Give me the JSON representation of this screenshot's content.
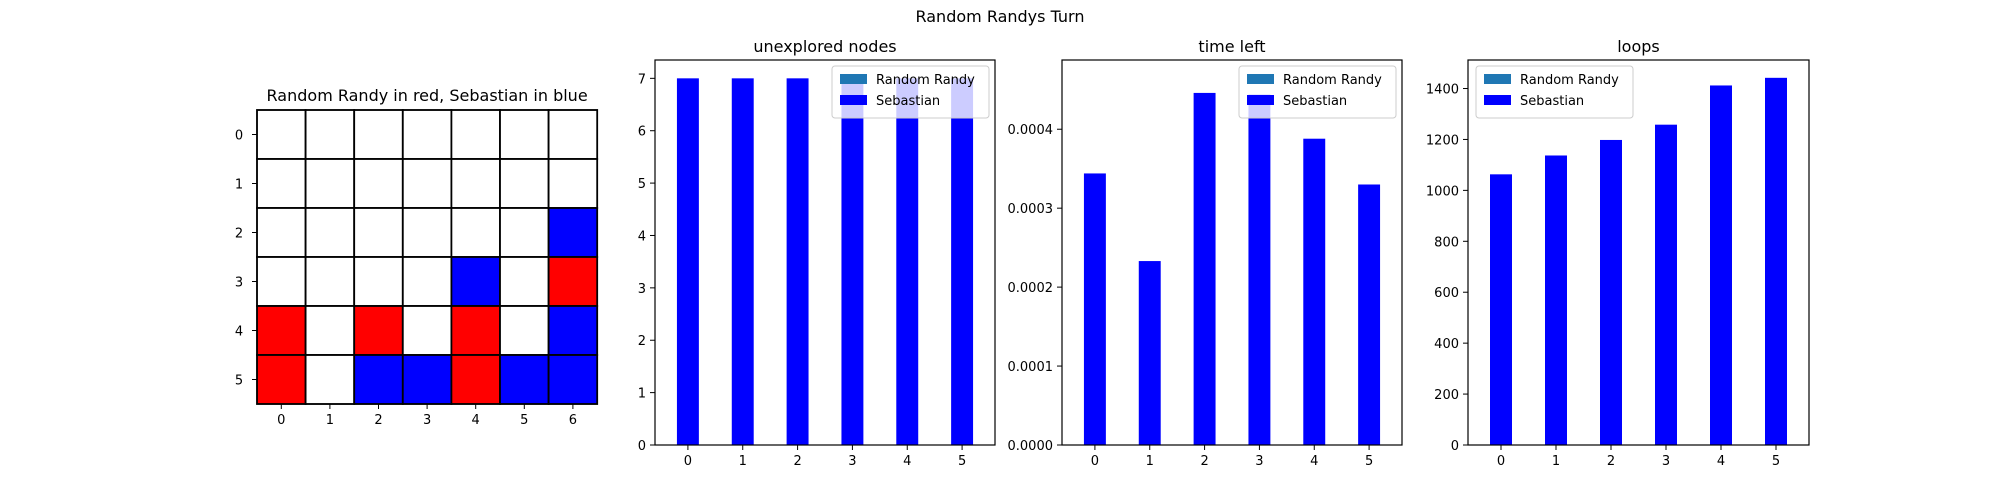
{
  "figure": {
    "suptitle": "Random Randys Turn"
  },
  "chart_data": [
    {
      "type": "heatmap",
      "title": "Random Randy in red, Sebastian in blue",
      "xlabel": "",
      "ylabel": "",
      "x_ticks": [
        "0",
        "1",
        "2",
        "3",
        "4",
        "5",
        "6"
      ],
      "y_ticks": [
        "0",
        "1",
        "2",
        "3",
        "4",
        "5"
      ],
      "cell_colors": {
        "empty": "#ffffff",
        "R": "#ff0000",
        "B": "#0000ff"
      },
      "grid": [
        [
          "",
          "",
          "",
          "",
          "",
          "",
          ""
        ],
        [
          "",
          "",
          "",
          "",
          "",
          "",
          ""
        ],
        [
          "",
          "",
          "",
          "",
          "",
          "",
          "B"
        ],
        [
          "",
          "",
          "",
          "",
          "B",
          "",
          "R"
        ],
        [
          "R",
          "",
          "R",
          "",
          "R",
          "",
          "B"
        ],
        [
          "R",
          "",
          "B",
          "B",
          "R",
          "B",
          "B"
        ]
      ]
    },
    {
      "type": "bar",
      "title": "unexplored nodes",
      "xlabel": "",
      "ylabel": "",
      "categories": [
        "0",
        "1",
        "2",
        "3",
        "4",
        "5"
      ],
      "ylim": [
        0,
        7.35
      ],
      "yticks": [
        "0",
        "1",
        "2",
        "3",
        "4",
        "5",
        "6",
        "7"
      ],
      "legend": "top-right",
      "series": [
        {
          "name": "Random Randy",
          "color": "#1f77b4",
          "values": [
            0,
            0,
            0,
            0,
            0,
            0
          ]
        },
        {
          "name": "Sebastian",
          "color": "#0000ff",
          "values": [
            7,
            7,
            7,
            7,
            7,
            7
          ]
        }
      ]
    },
    {
      "type": "bar",
      "title": "time left",
      "xlabel": "",
      "ylabel": "",
      "categories": [
        "0",
        "1",
        "2",
        "3",
        "4",
        "5"
      ],
      "ylim": [
        0,
        0.0004877
      ],
      "yticks": [
        "0.0000",
        "0.0001",
        "0.0002",
        "0.0003",
        "0.0004"
      ],
      "legend": "top-right",
      "series": [
        {
          "name": "Random Randy",
          "color": "#1f77b4",
          "values": [
            0,
            0,
            0,
            0,
            0,
            0
          ]
        },
        {
          "name": "Sebastian",
          "color": "#0000ff",
          "values": [
            0.000344,
            0.000233,
            0.000446,
            0.000444,
            0.000388,
            0.00033
          ]
        }
      ]
    },
    {
      "type": "bar",
      "title": "loops",
      "xlabel": "",
      "ylabel": "",
      "categories": [
        "0",
        "1",
        "2",
        "3",
        "4",
        "5"
      ],
      "ylim": [
        0,
        1512
      ],
      "yticks": [
        "0",
        "200",
        "400",
        "600",
        "800",
        "1000",
        "1200",
        "1400"
      ],
      "legend": "top-left",
      "series": [
        {
          "name": "Random Randy",
          "color": "#1f77b4",
          "values": [
            0,
            0,
            0,
            0,
            0,
            0
          ]
        },
        {
          "name": "Sebastian",
          "color": "#0000ff",
          "values": [
            1063,
            1137,
            1198,
            1258,
            1412,
            1442
          ]
        }
      ]
    }
  ]
}
